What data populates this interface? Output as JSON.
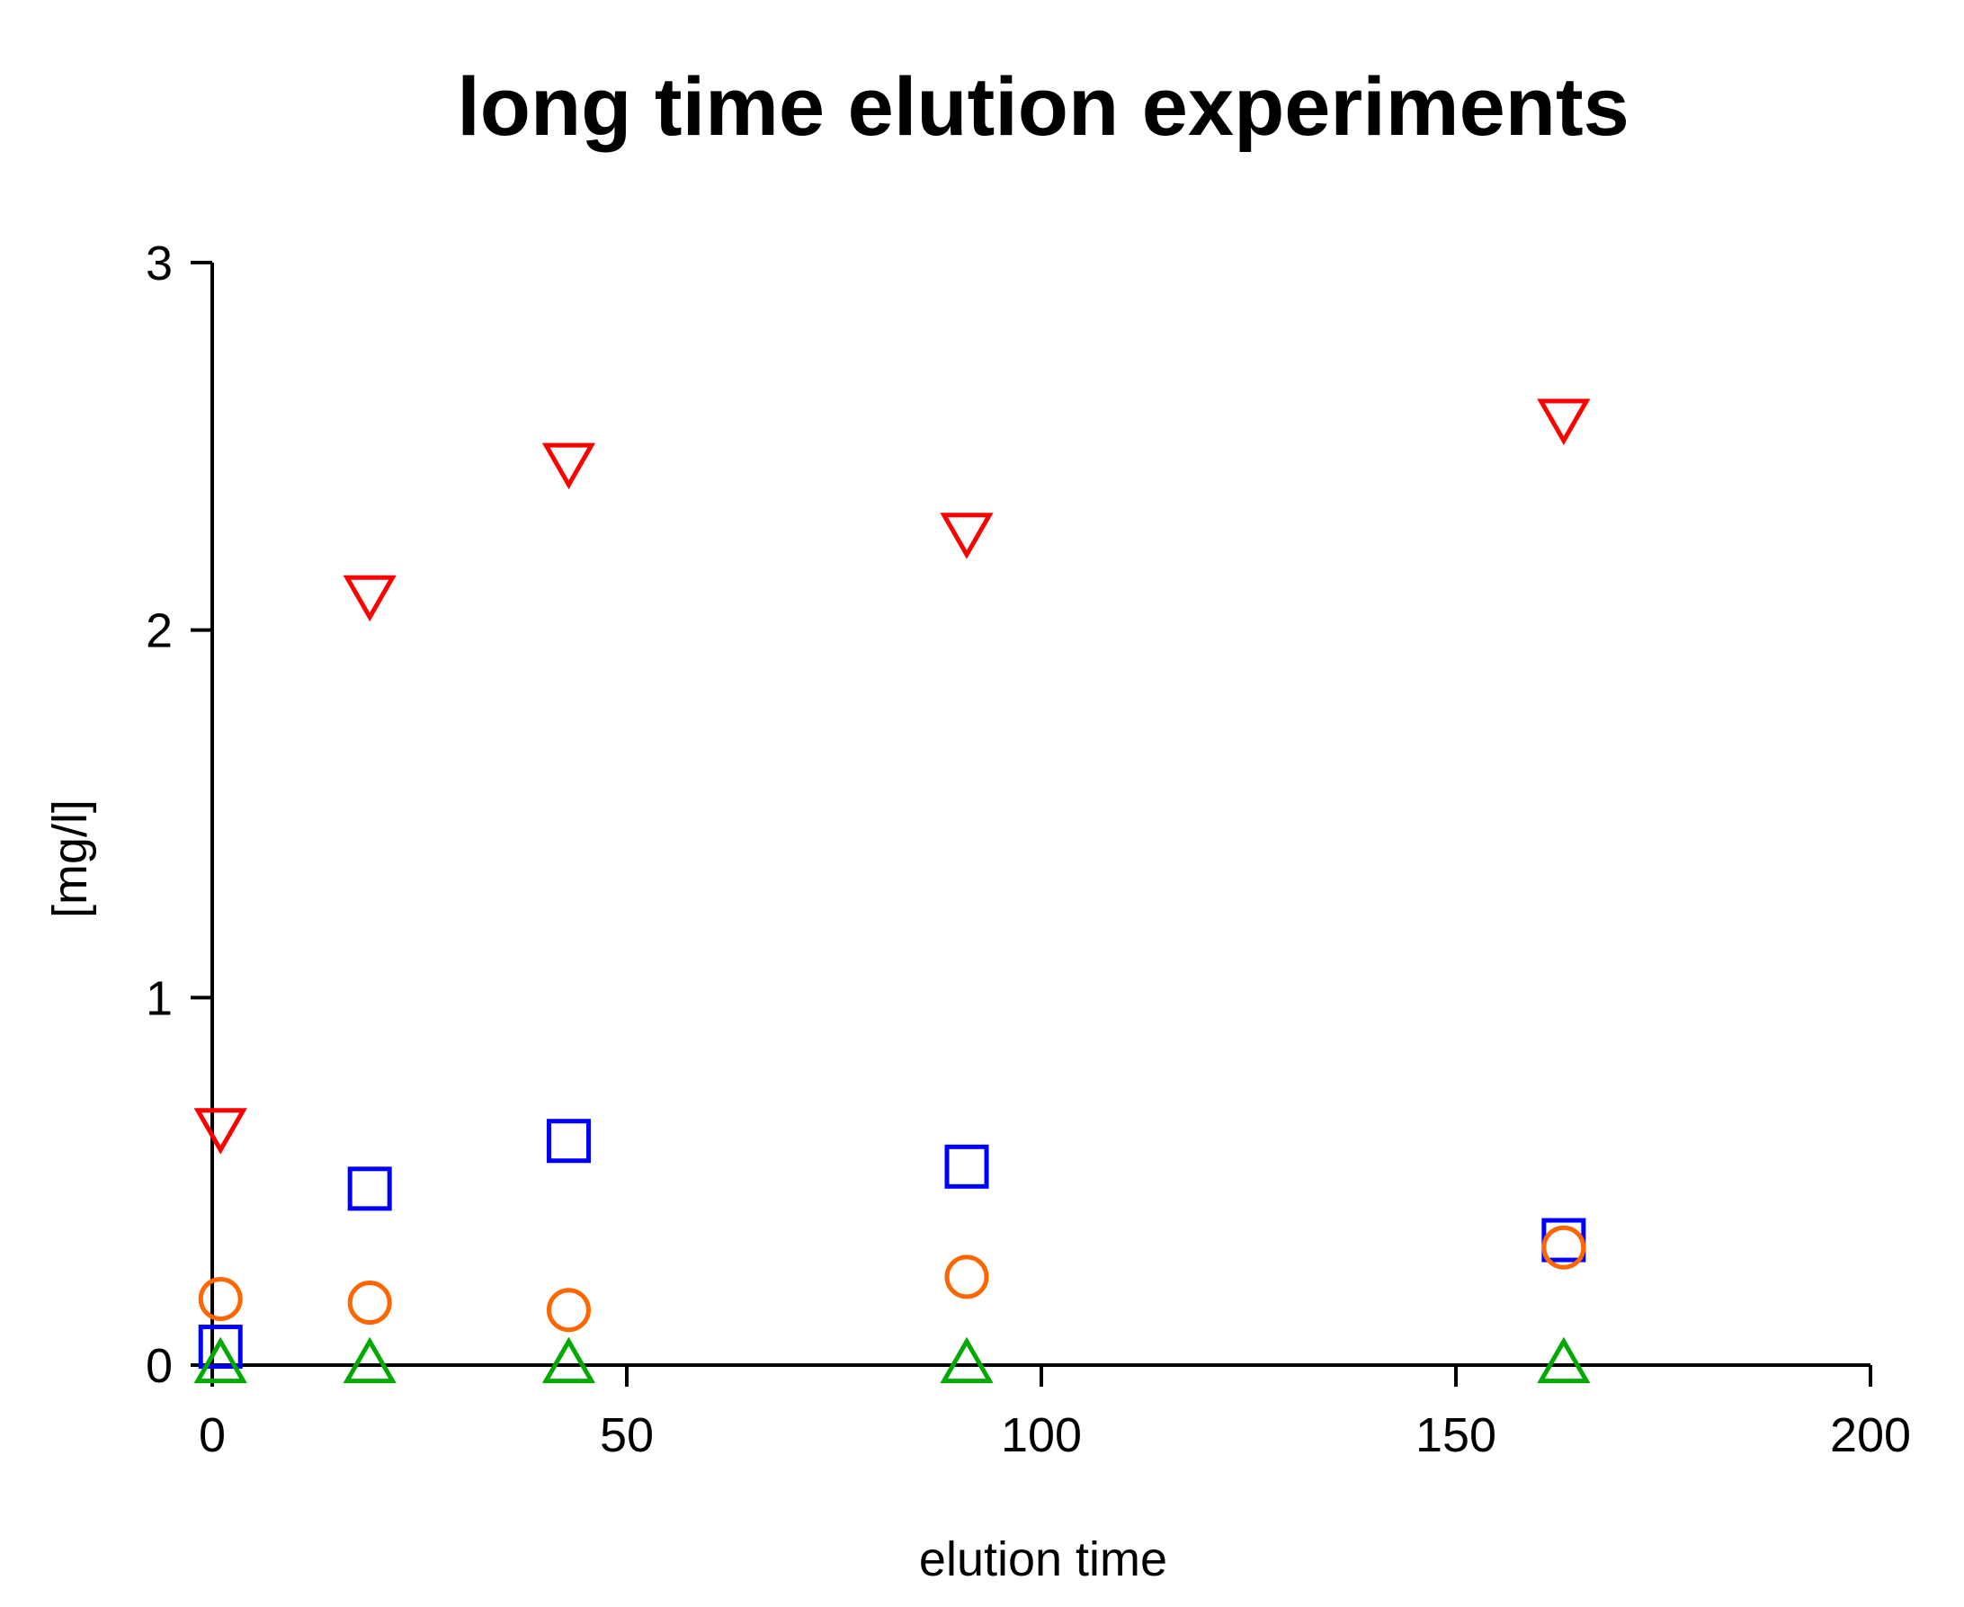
{
  "chart_data": {
    "type": "scatter",
    "title": "long time elution experiments",
    "xlabel": "elution time",
    "ylabel": "[mg/l]",
    "xlim": [
      0,
      200
    ],
    "ylim": [
      0,
      3
    ],
    "xticks": [
      0,
      50,
      100,
      150,
      200
    ],
    "yticks": [
      0,
      1,
      2,
      3
    ],
    "grid": false,
    "legend": "none",
    "series": [
      {
        "marker": "triangle-down",
        "color": "#ff0000",
        "x": [
          1,
          19,
          43,
          91,
          163
        ],
        "y": [
          0.65,
          2.1,
          2.46,
          2.27,
          2.58
        ]
      },
      {
        "marker": "square",
        "color": "#0000ff",
        "x": [
          1,
          19,
          43,
          91,
          163
        ],
        "y": [
          0.05,
          0.48,
          0.61,
          0.54,
          0.34
        ]
      },
      {
        "marker": "circle",
        "color": "#ff6600",
        "x": [
          1,
          19,
          43,
          91,
          163
        ],
        "y": [
          0.18,
          0.17,
          0.15,
          0.24,
          0.32
        ]
      },
      {
        "marker": "triangle-up",
        "color": "#00aa00",
        "x": [
          1,
          19,
          43,
          91,
          163
        ],
        "y": [
          0.0,
          0.0,
          0.0,
          0.0,
          0.0
        ]
      }
    ]
  }
}
